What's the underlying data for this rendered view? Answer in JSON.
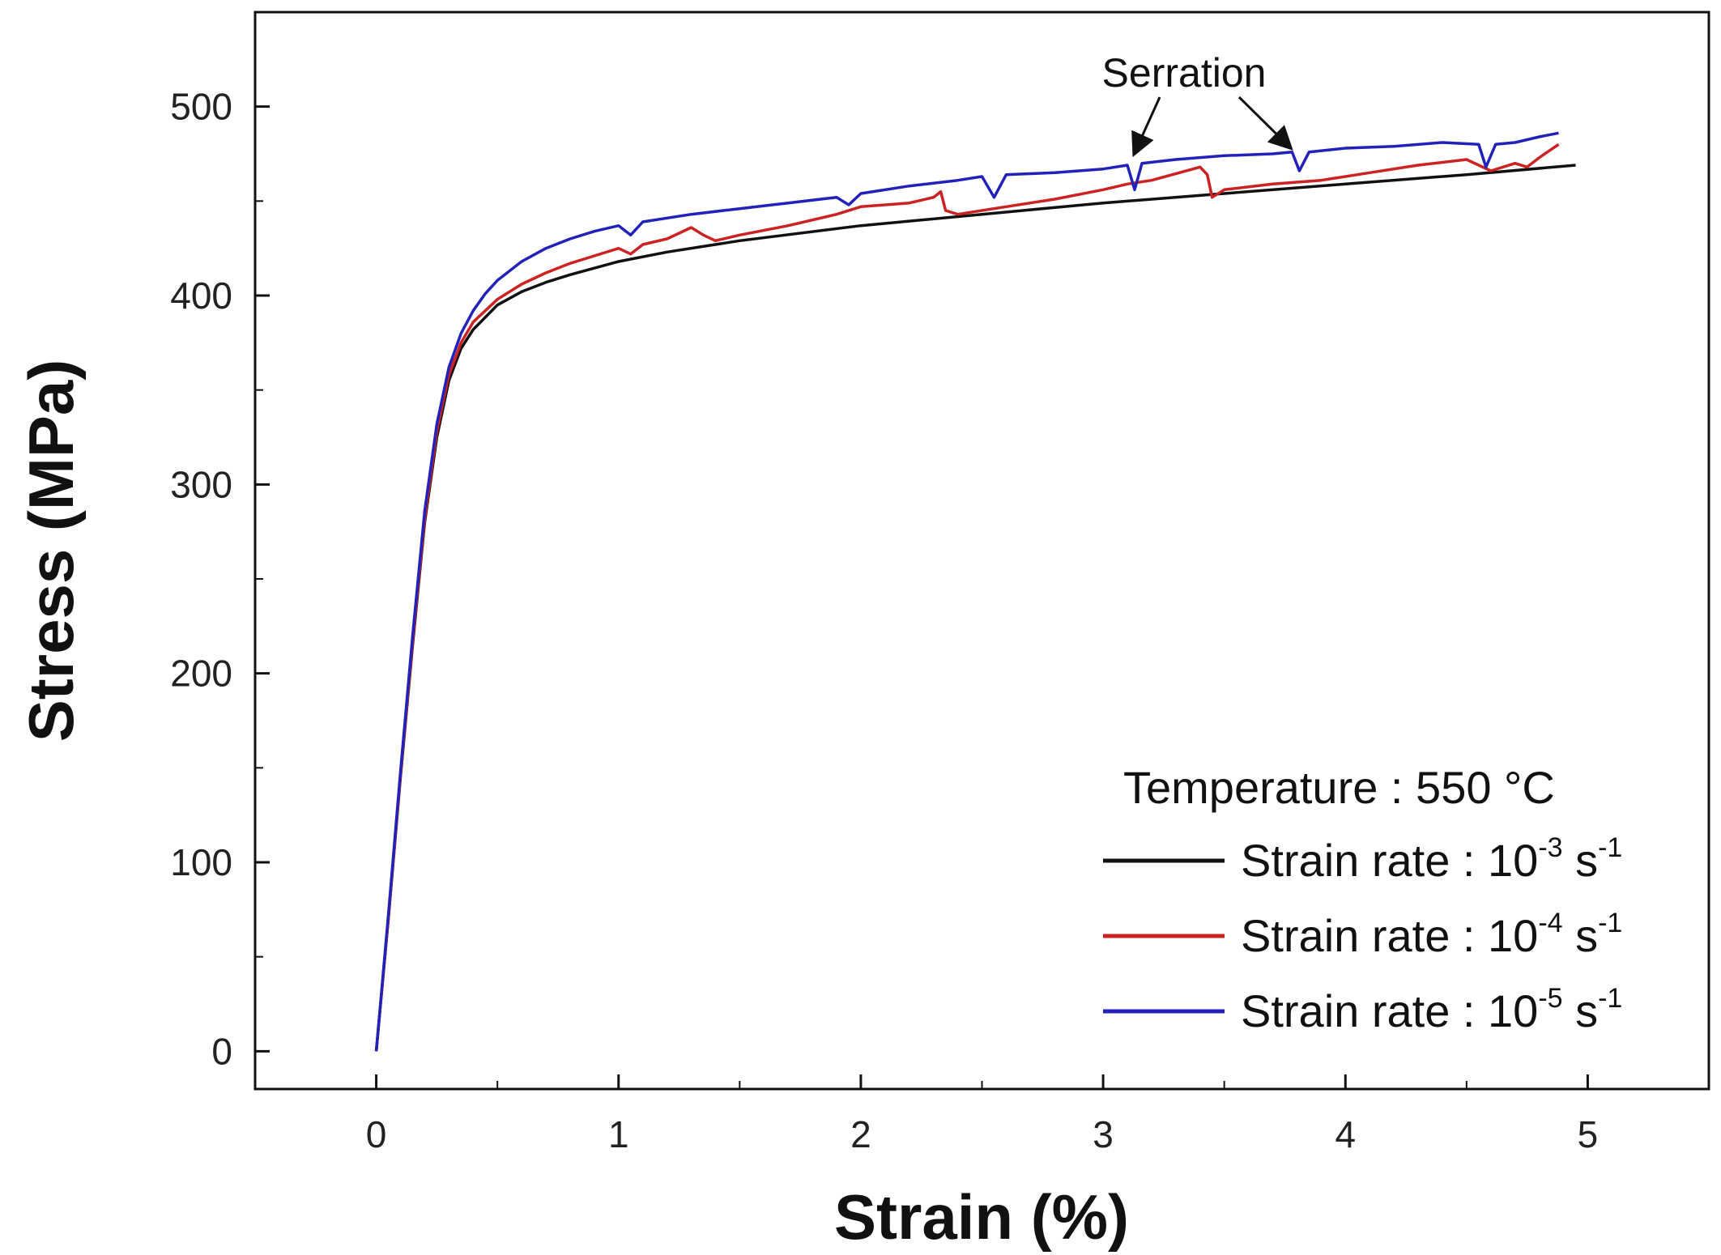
{
  "chart_data": {
    "type": "line",
    "title": "",
    "xlabel": "Strain (%)",
    "ylabel": "Stress (MPa)",
    "xlim": [
      -0.5,
      5.5
    ],
    "ylim": [
      -20,
      550
    ],
    "xticks": [
      0,
      1,
      2,
      3,
      4,
      5
    ],
    "yticks": [
      0,
      100,
      200,
      300,
      400,
      500
    ],
    "grid": false,
    "legend_title": "Temperature : 550 °C",
    "legend_position": "bottom-right",
    "annotation": {
      "text": "Serration",
      "targets": [
        [
          3.13,
          473
        ],
        [
          3.77,
          476
        ]
      ]
    },
    "series": [
      {
        "name": "Strain rate : 10-3 s-1",
        "label_base": "Strain rate : 10",
        "label_exp": "-3",
        "label_unit": " s",
        "label_unit_exp": "-1",
        "color": "#111111",
        "x": [
          0,
          0.05,
          0.1,
          0.15,
          0.2,
          0.25,
          0.3,
          0.35,
          0.4,
          0.5,
          0.6,
          0.7,
          0.8,
          1.0,
          1.2,
          1.5,
          2.0,
          2.5,
          3.0,
          3.5,
          4.0,
          4.5,
          4.95
        ],
        "y": [
          0,
          70,
          145,
          215,
          280,
          325,
          355,
          372,
          382,
          395,
          402,
          407,
          411,
          418,
          423,
          429,
          437,
          443,
          449,
          454,
          459,
          464,
          469
        ]
      },
      {
        "name": "Strain rate : 10-4 s-1",
        "label_base": "Strain rate : 10",
        "label_exp": "-4",
        "label_unit": " s",
        "label_unit_exp": "-1",
        "color": "#cc2222",
        "x": [
          0,
          0.05,
          0.1,
          0.15,
          0.2,
          0.25,
          0.3,
          0.35,
          0.4,
          0.5,
          0.6,
          0.7,
          0.8,
          0.9,
          1.0,
          1.05,
          1.1,
          1.2,
          1.3,
          1.35,
          1.4,
          1.5,
          1.7,
          1.9,
          2.0,
          2.2,
          2.3,
          2.33,
          2.35,
          2.4,
          2.6,
          2.8,
          3.0,
          3.1,
          3.2,
          3.4,
          3.43,
          3.45,
          3.5,
          3.7,
          3.9,
          4.1,
          4.3,
          4.5,
          4.6,
          4.7,
          4.75,
          4.8,
          4.88
        ],
        "y": [
          0,
          70,
          146,
          217,
          282,
          328,
          358,
          375,
          386,
          398,
          406,
          412,
          417,
          421,
          425,
          422,
          427,
          430,
          436,
          432,
          429,
          432,
          437,
          443,
          447,
          449,
          452,
          455,
          445,
          443,
          447,
          451,
          456,
          459,
          461,
          468,
          464,
          452,
          456,
          459,
          461,
          465,
          469,
          472,
          466,
          470,
          468,
          473,
          480
        ]
      },
      {
        "name": "Strain rate : 10-5 s-1",
        "label_base": "Strain rate : 10",
        "label_exp": "-5",
        "label_unit": " s",
        "label_unit_exp": "-1",
        "color": "#2222bb",
        "x": [
          0,
          0.05,
          0.1,
          0.15,
          0.2,
          0.25,
          0.3,
          0.35,
          0.4,
          0.45,
          0.5,
          0.6,
          0.7,
          0.8,
          0.9,
          1.0,
          1.05,
          1.1,
          1.3,
          1.5,
          1.7,
          1.9,
          1.95,
          2.0,
          2.2,
          2.4,
          2.5,
          2.55,
          2.6,
          2.8,
          3.0,
          3.1,
          3.13,
          3.16,
          3.3,
          3.5,
          3.7,
          3.78,
          3.81,
          3.85,
          4.0,
          4.2,
          4.4,
          4.55,
          4.58,
          4.62,
          4.7,
          4.8,
          4.88
        ],
        "y": [
          0,
          72,
          148,
          220,
          286,
          332,
          362,
          380,
          392,
          401,
          408,
          418,
          425,
          430,
          434,
          437,
          432,
          439,
          443,
          446,
          449,
          452,
          448,
          454,
          458,
          461,
          463,
          452,
          464,
          465,
          467,
          469,
          456,
          470,
          472,
          474,
          475,
          476,
          466,
          476,
          478,
          479,
          481,
          480,
          468,
          480,
          481,
          484,
          486
        ]
      }
    ]
  }
}
